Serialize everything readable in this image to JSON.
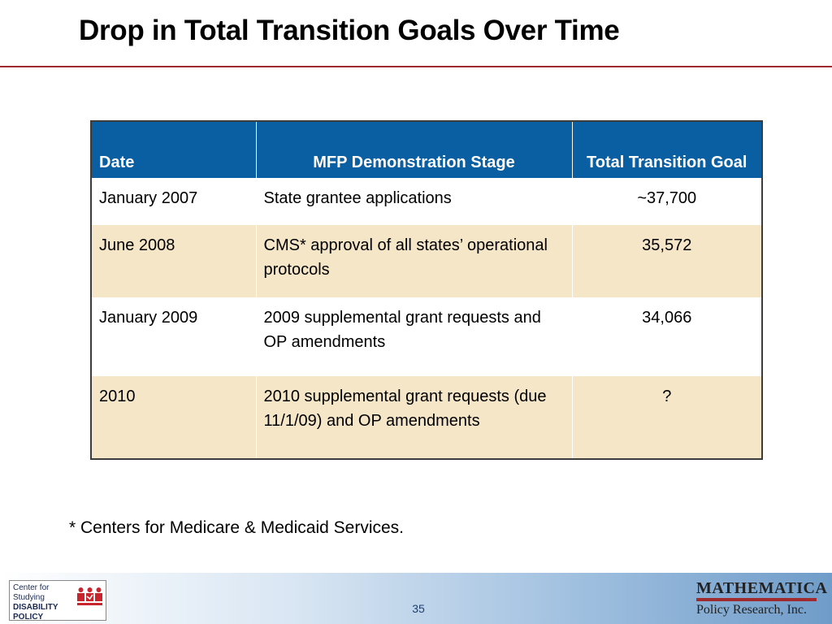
{
  "slide": {
    "title": "Drop in Total Transition Goals Over Time",
    "footnote": "* Centers for Medicare & Medicaid Services.",
    "page_number": "35"
  },
  "table": {
    "headers": [
      "Date",
      "MFP Demonstration Stage",
      "Total Transition Goal"
    ],
    "rows": [
      {
        "date": "January 2007",
        "stage": "State grantee applications",
        "goal": "~37,700"
      },
      {
        "date": "June 2008",
        "stage": "CMS* approval of all states’ operational protocols",
        "goal": "35,572"
      },
      {
        "date": "January 2009",
        "stage": "2009 supplemental grant requests and OP amendments",
        "goal": "34,066"
      },
      {
        "date": "2010",
        "stage": "2010 supplemental grant requests (due 11/1/09) and OP amendments",
        "goal": "?"
      }
    ]
  },
  "logos": {
    "csdp": {
      "line1": "Center for",
      "line2": "Studying",
      "line3": "DISABILITY POLICY"
    },
    "mathematica": {
      "name": "MATHEMATICA",
      "subtitle": "Policy Research, Inc."
    }
  },
  "colors": {
    "header_blue": "#0a5fa2",
    "row_tan": "#f5e6c8",
    "accent_red": "#a02b2f"
  }
}
